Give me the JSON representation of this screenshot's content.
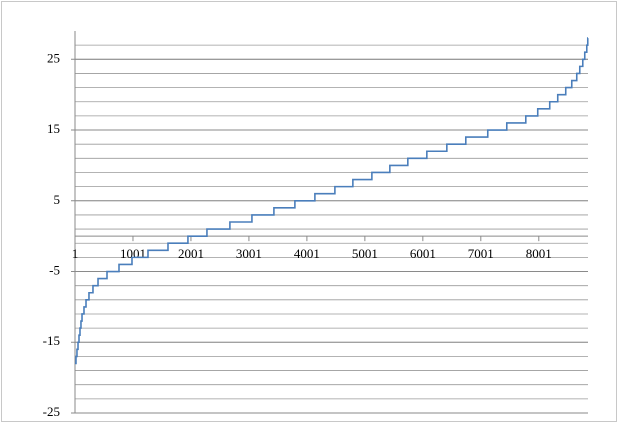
{
  "chart_data": {
    "type": "line",
    "step": "after",
    "x": [
      1,
      18,
      35,
      53,
      70,
      87,
      104,
      122,
      156,
      191,
      242,
      311,
      398,
      553,
      760,
      984,
      1260,
      1605,
      1949,
      2277,
      2673,
      3053,
      3432,
      3794,
      4139,
      4484,
      4794,
      5122,
      5432,
      5742,
      6070,
      6415,
      6742,
      7121,
      7449,
      7777,
      7983,
      8190,
      8328,
      8466,
      8570,
      8656,
      8708,
      8760,
      8794,
      8829,
      8846
    ],
    "series": [
      {
        "color": "#4a7ebb",
        "values": [
          -18,
          -17,
          -16,
          -15,
          -14,
          -13,
          -12,
          -11,
          -10,
          -9,
          -8,
          -7,
          -6,
          -5,
          -4,
          -3,
          -2,
          -1,
          0,
          1,
          2,
          3,
          4,
          5,
          6,
          7,
          8,
          9,
          10,
          11,
          12,
          13,
          14,
          15,
          16,
          17,
          18,
          19,
          20,
          21,
          22,
          23,
          24,
          25,
          26,
          27,
          28
        ]
      }
    ],
    "xlim": [
      1,
      8850
    ],
    "xticks": [
      1,
      1001,
      2001,
      3001,
      4001,
      5001,
      6001,
      7001,
      8001
    ],
    "ylim": [
      -25,
      29
    ],
    "yticks": [
      25,
      15,
      5,
      -5,
      -15,
      -25
    ],
    "ygrid": [
      -25,
      -23,
      -21,
      -19,
      -17,
      -15,
      -13,
      -11,
      -9,
      -7,
      -5,
      -3,
      -1,
      1,
      3,
      5,
      7,
      9,
      11,
      13,
      15,
      17,
      19,
      21,
      23,
      25,
      27
    ],
    "grid": true
  }
}
